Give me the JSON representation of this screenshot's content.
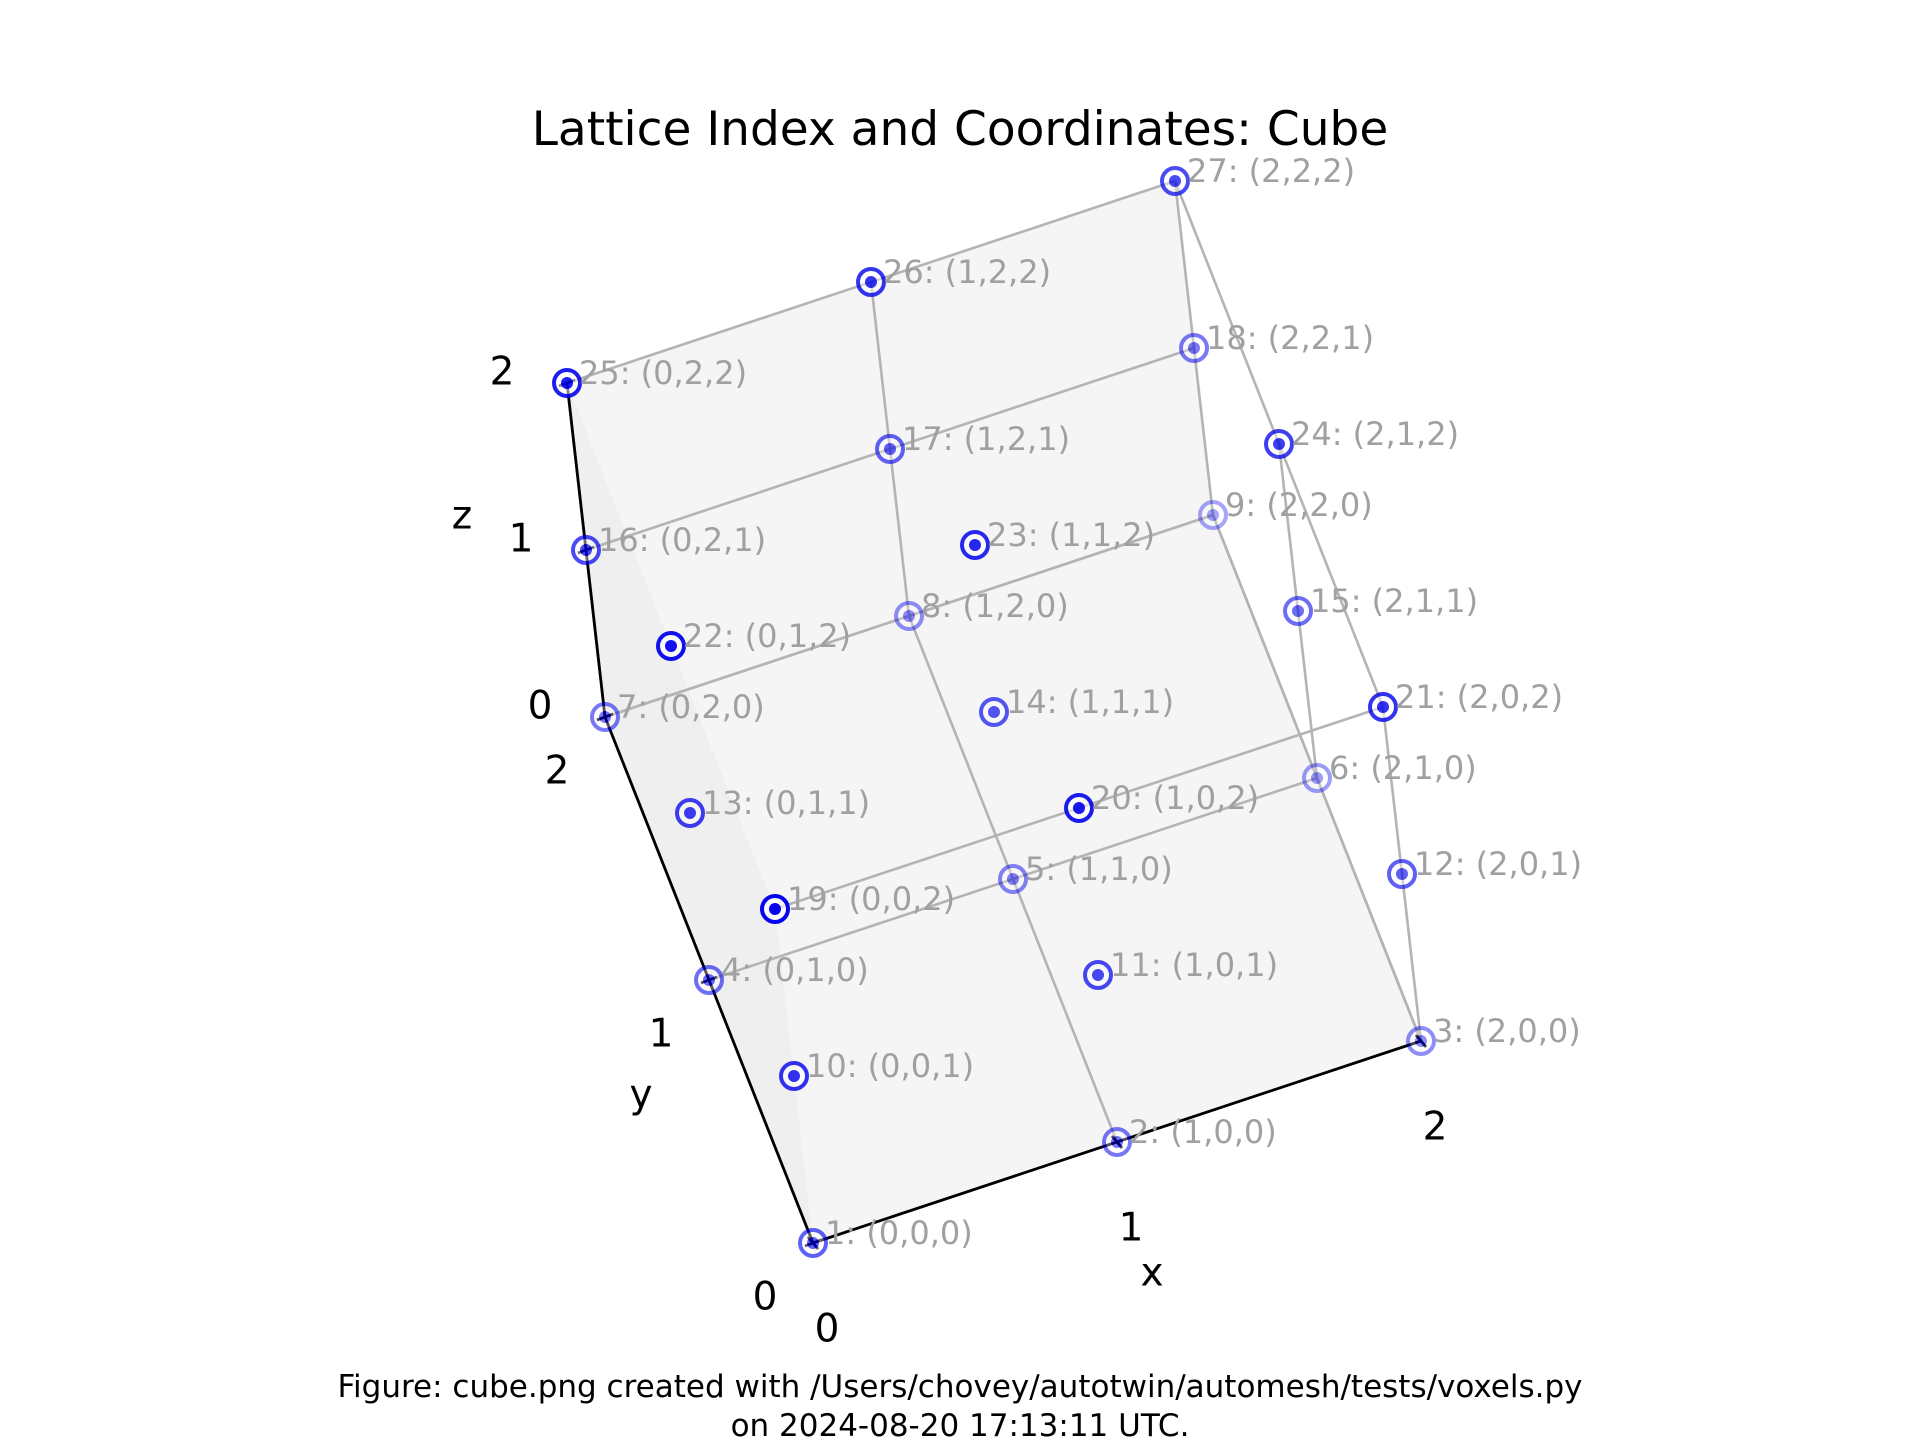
{
  "chart_data": {
    "type": "scatter",
    "title": "Lattice Index and Coordinates: Cube",
    "xlabel": "x",
    "ylabel": "y",
    "zlabel": "z",
    "xticks": [
      "0",
      "1",
      "2"
    ],
    "yticks": [
      "0",
      "1",
      "2"
    ],
    "zticks": [
      "0",
      "1",
      "2"
    ],
    "xlim": [
      0,
      2
    ],
    "ylim": [
      0,
      2
    ],
    "zlim": [
      0,
      2
    ],
    "points": [
      {
        "label": "1: (0,0,0)",
        "x": 0,
        "y": 0,
        "z": 0
      },
      {
        "label": "2: (1,0,0)",
        "x": 1,
        "y": 0,
        "z": 0
      },
      {
        "label": "3: (2,0,0)",
        "x": 2,
        "y": 0,
        "z": 0
      },
      {
        "label": "4: (0,1,0)",
        "x": 0,
        "y": 1,
        "z": 0
      },
      {
        "label": "5: (1,1,0)",
        "x": 1,
        "y": 1,
        "z": 0
      },
      {
        "label": "6: (2,1,0)",
        "x": 2,
        "y": 1,
        "z": 0
      },
      {
        "label": "7: (0,2,0)",
        "x": 0,
        "y": 2,
        "z": 0
      },
      {
        "label": "8: (1,2,0)",
        "x": 1,
        "y": 2,
        "z": 0
      },
      {
        "label": "9: (2,2,0)",
        "x": 2,
        "y": 2,
        "z": 0
      },
      {
        "label": "10: (0,0,1)",
        "x": 0,
        "y": 0,
        "z": 1
      },
      {
        "label": "11: (1,0,1)",
        "x": 1,
        "y": 0,
        "z": 1
      },
      {
        "label": "12: (2,0,1)",
        "x": 2,
        "y": 0,
        "z": 1
      },
      {
        "label": "13: (0,1,1)",
        "x": 0,
        "y": 1,
        "z": 1
      },
      {
        "label": "14: (1,1,1)",
        "x": 1,
        "y": 1,
        "z": 1
      },
      {
        "label": "15: (2,1,1)",
        "x": 2,
        "y": 1,
        "z": 1
      },
      {
        "label": "16: (0,2,1)",
        "x": 0,
        "y": 2,
        "z": 1
      },
      {
        "label": "17: (1,2,1)",
        "x": 1,
        "y": 2,
        "z": 1
      },
      {
        "label": "18: (2,2,1)",
        "x": 2,
        "y": 2,
        "z": 1
      },
      {
        "label": "19: (0,0,2)",
        "x": 0,
        "y": 0,
        "z": 2
      },
      {
        "label": "20: (1,0,2)",
        "x": 1,
        "y": 0,
        "z": 2
      },
      {
        "label": "21: (2,0,2)",
        "x": 2,
        "y": 0,
        "z": 2
      },
      {
        "label": "22: (0,1,2)",
        "x": 0,
        "y": 1,
        "z": 2
      },
      {
        "label": "23: (1,1,2)",
        "x": 1,
        "y": 1,
        "z": 2
      },
      {
        "label": "24: (2,1,2)",
        "x": 2,
        "y": 1,
        "z": 2
      },
      {
        "label": "25: (0,2,2)",
        "x": 0,
        "y": 2,
        "z": 2
      },
      {
        "label": "26: (1,2,2)",
        "x": 1,
        "y": 2,
        "z": 2
      },
      {
        "label": "27: (2,2,2)",
        "x": 2,
        "y": 2,
        "z": 2
      }
    ],
    "grid": false,
    "colors": {
      "marker": "#0000ee",
      "label": "#a0a0a0",
      "edge": "#b4b4b4",
      "axis": "#000000"
    }
  },
  "caption": {
    "line1": "Figure: cube.png created with /Users/chovey/autotwin/automesh/tests/voxels.py",
    "line2": "on 2024-08-20 17:13:11 UTC."
  }
}
